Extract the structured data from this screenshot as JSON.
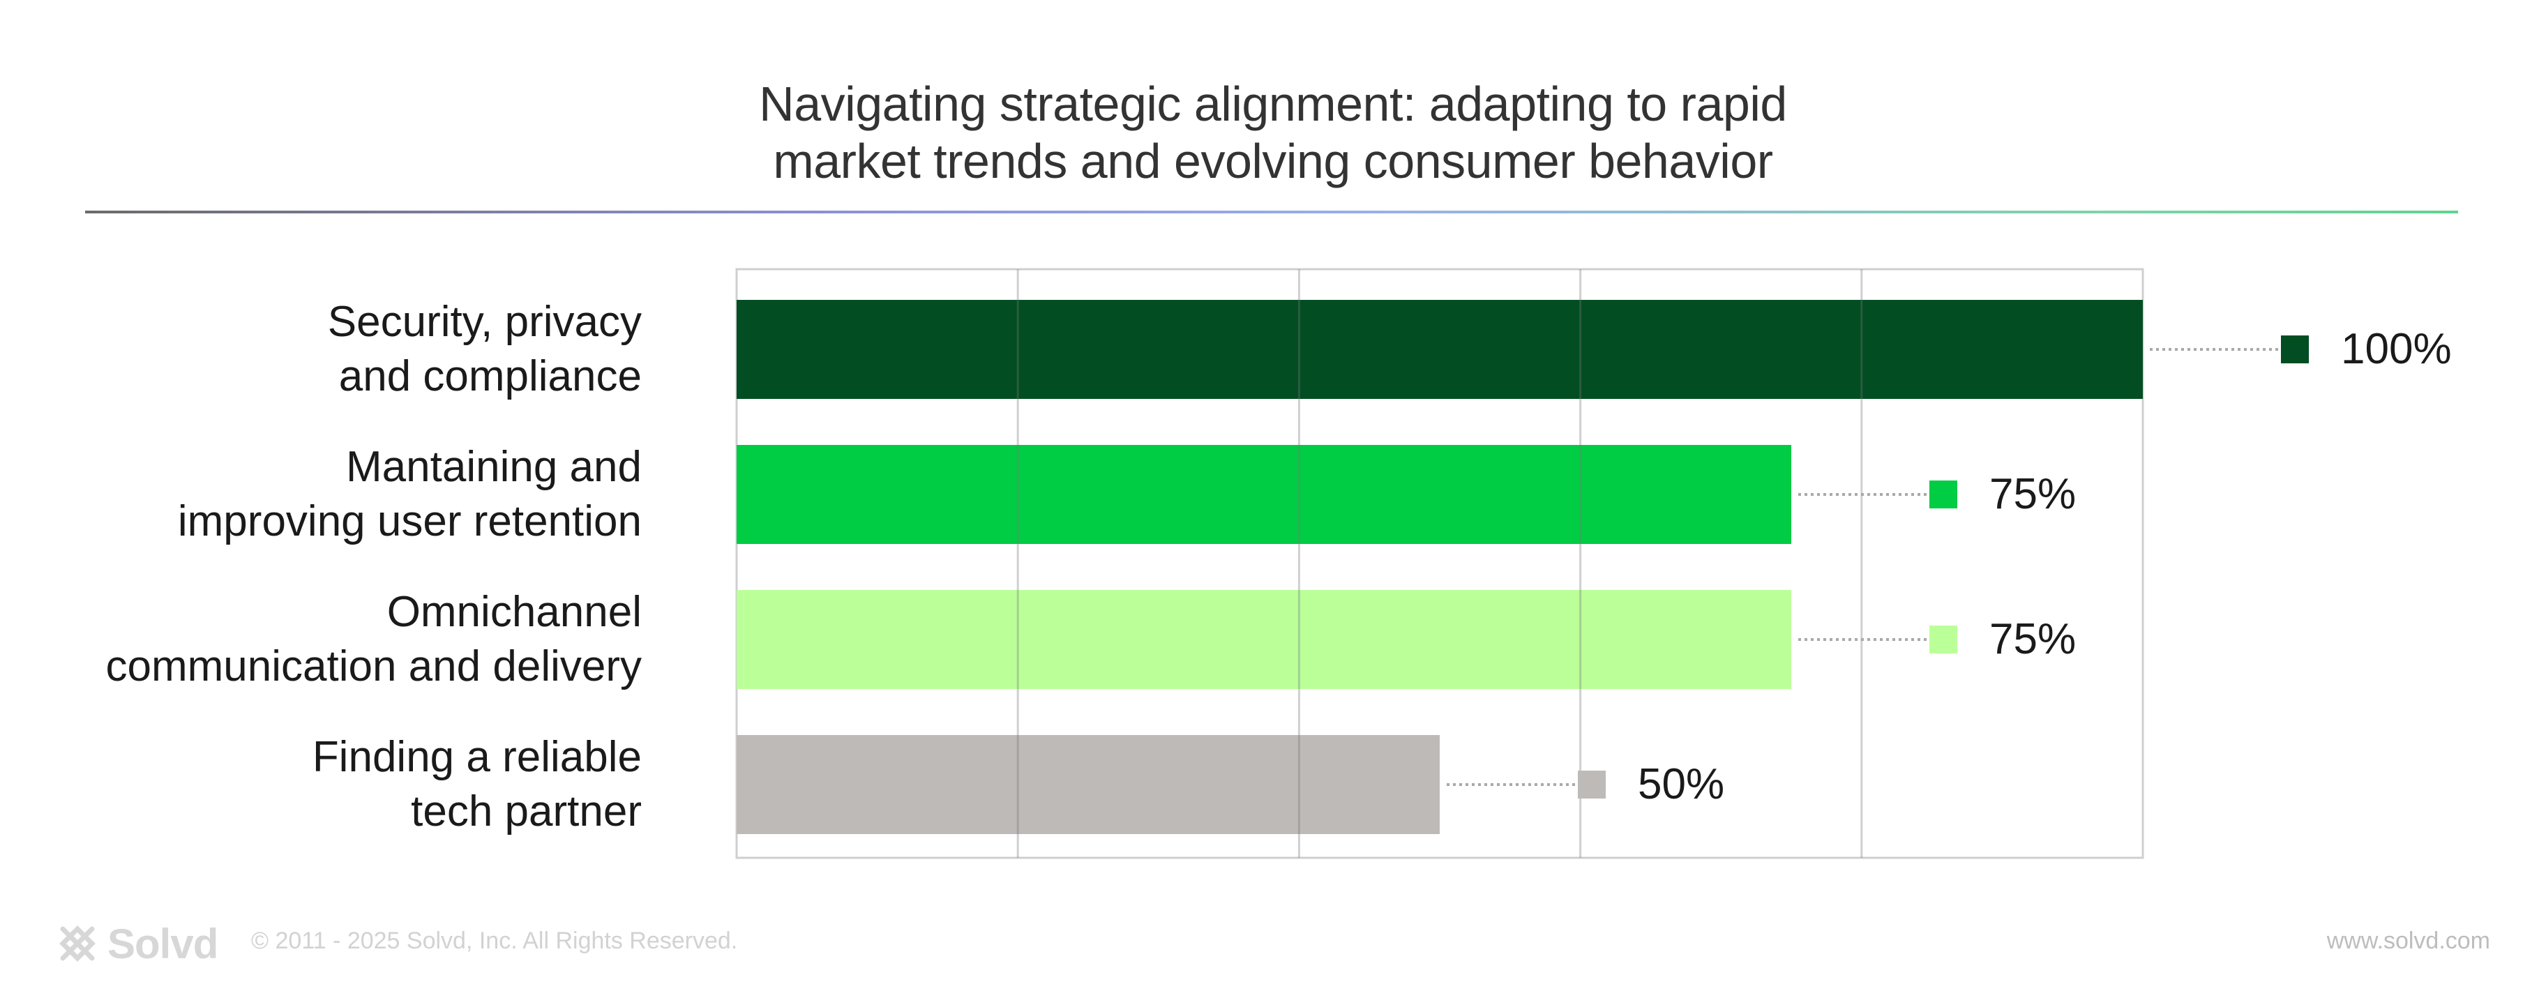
{
  "chart_data": {
    "type": "bar",
    "orientation": "horizontal",
    "title": "Navigating strategic alignment: adapting to rapid market trends and evolving consumer behavior",
    "title_lines": [
      "Navigating strategic alignment: adapting to rapid",
      "market trends and evolving consumer behavior"
    ],
    "categories": [
      "Security, privacy and compliance",
      "Mantaining and improving user retention",
      "Omnichannel communication and delivery",
      "Finding a reliable tech partner"
    ],
    "category_lines": [
      [
        "Security, privacy",
        "and compliance"
      ],
      [
        "Mantaining and",
        "improving user retention"
      ],
      [
        "Omnichannel",
        "communication and delivery"
      ],
      [
        "Finding a reliable",
        "tech partner"
      ]
    ],
    "values": [
      100,
      75,
      75,
      50
    ],
    "value_labels": [
      "100%",
      "75%",
      "75%",
      "50%"
    ],
    "colors": [
      "#024d22",
      "#00cc44",
      "#bbff99",
      "#bdbab8"
    ],
    "xlim": [
      0,
      100
    ],
    "grid": true,
    "legend": "none",
    "xlabel": "",
    "ylabel": ""
  },
  "footer": {
    "brand": "Solvd",
    "copyright": "© 2011 - 2025 Solvd, Inc. All Rights Reserved.",
    "url": "www.solvd.com"
  },
  "icons": {
    "logo": "solvd-logo-icon"
  }
}
